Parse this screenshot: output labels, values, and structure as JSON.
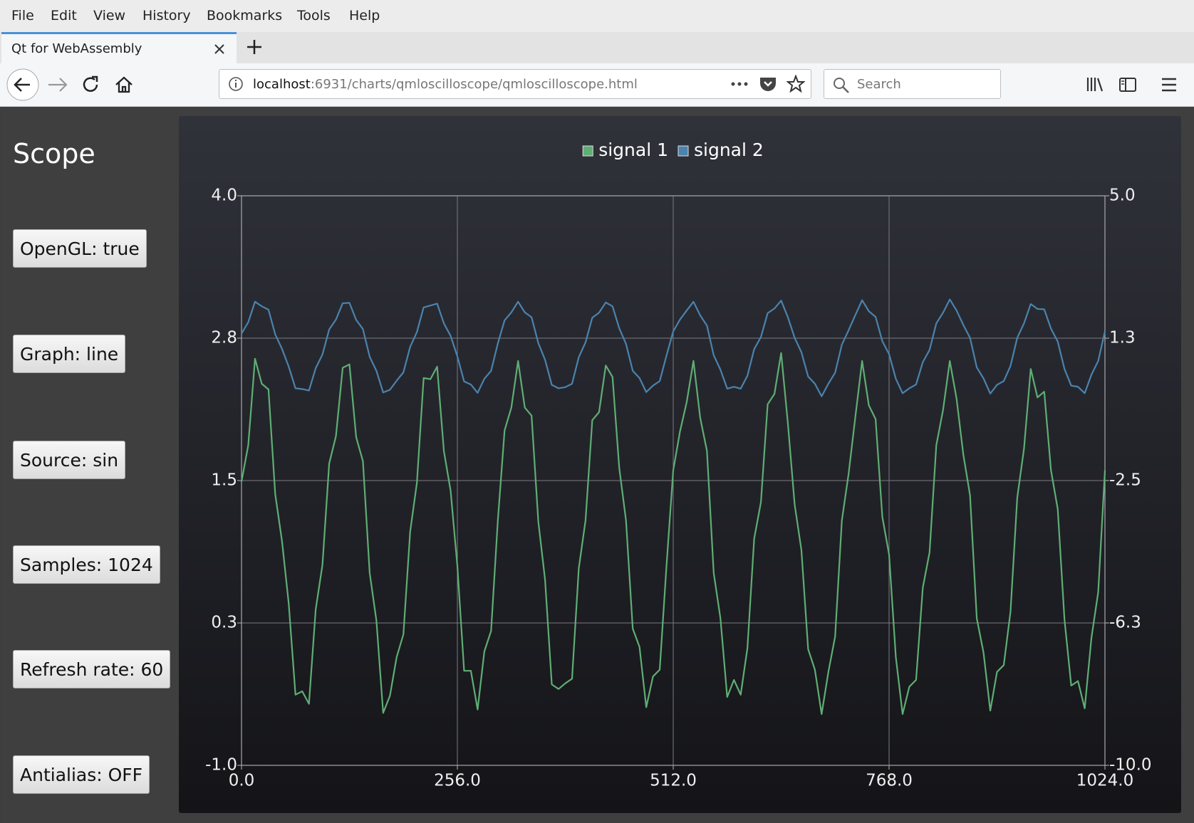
{
  "browser": {
    "menu": [
      "File",
      "Edit",
      "View",
      "History",
      "Bookmarks",
      "Tools",
      "Help"
    ],
    "tab_title": "Qt for WebAssembly",
    "url_host": "localhost",
    "url_path": ":6931/charts/qmloscilloscope/qmloscilloscope.html",
    "search_placeholder": "Search"
  },
  "app": {
    "title": "Scope",
    "buttons": [
      "OpenGL: true",
      "Graph: line",
      "Source: sin",
      "Samples: 1024",
      "Refresh rate: 60",
      "Antialias: OFF"
    ]
  },
  "chart_data": {
    "type": "line",
    "grid": true,
    "legend": "top",
    "x": [
      0,
      8,
      16,
      24,
      32,
      40,
      48,
      56,
      64,
      72,
      80,
      88,
      96,
      104,
      112,
      120,
      128,
      136,
      144,
      152,
      160,
      168,
      176,
      184,
      192,
      200,
      208,
      216,
      224,
      232,
      240,
      248,
      256,
      264,
      272,
      280,
      288,
      296,
      304,
      312,
      320,
      328,
      336,
      344,
      352,
      360,
      368,
      376,
      384,
      392,
      400,
      408,
      416,
      424,
      432,
      440,
      448,
      456,
      464,
      472,
      480,
      488,
      496,
      504,
      512,
      520,
      528,
      536,
      544,
      552,
      560,
      568,
      576,
      584,
      592,
      600,
      608,
      616,
      624,
      632,
      640,
      648,
      656,
      664,
      672,
      680,
      688,
      696,
      704,
      712,
      720,
      728,
      736,
      744,
      752,
      760,
      768,
      776,
      784,
      792,
      800,
      808,
      816,
      824,
      832,
      840,
      848,
      856,
      864,
      872,
      880,
      888,
      896,
      904,
      912,
      920,
      928,
      936,
      944,
      952,
      960,
      968,
      976,
      984,
      992,
      1000,
      1008,
      1016,
      1024
    ],
    "xlim": [
      0,
      1024
    ],
    "xticks": [
      {
        "value": 0,
        "label": "0.0"
      },
      {
        "value": 256,
        "label": "256.0"
      },
      {
        "value": 512,
        "label": "512.0"
      },
      {
        "value": 768,
        "label": "768.0"
      },
      {
        "value": 1024,
        "label": "1024.0"
      }
    ],
    "ylim": [
      -1,
      4
    ],
    "yticks": [
      {
        "value": -1,
        "label": "-1.0"
      },
      {
        "value": 0.25,
        "label": "0.3"
      },
      {
        "value": 1.5,
        "label": "1.5"
      },
      {
        "value": 2.75,
        "label": "2.8"
      },
      {
        "value": 4,
        "label": "4.0"
      }
    ],
    "y2lim": [
      -10,
      5
    ],
    "y2ticks": [
      {
        "value": -10,
        "label": "-10.0"
      },
      {
        "value": -6.25,
        "label": "-6.3"
      },
      {
        "value": -2.5,
        "label": "-2.5"
      },
      {
        "value": 1.25,
        "label": "1.3"
      },
      {
        "value": 5,
        "label": "5.0"
      }
    ],
    "series": [
      {
        "name": "signal 1",
        "color": "#5fae74",
        "values": [
          1.49,
          1.81,
          2.57,
          2.35,
          2.3,
          1.38,
          0.97,
          0.42,
          -0.38,
          -0.35,
          -0.46,
          0.37,
          0.76,
          1.65,
          1.89,
          2.49,
          2.52,
          1.88,
          1.67,
          0.69,
          0.27,
          -0.54,
          -0.39,
          -0.05,
          0.15,
          1.05,
          1.48,
          2.4,
          2.39,
          2.5,
          1.76,
          1.41,
          0.75,
          -0.17,
          -0.17,
          -0.51,
          0.0,
          0.18,
          1.15,
          1.94,
          2.14,
          2.55,
          2.14,
          2.07,
          1.14,
          0.63,
          -0.29,
          -0.33,
          -0.28,
          -0.24,
          0.73,
          1.15,
          2.03,
          2.1,
          2.51,
          2.41,
          1.61,
          1.15,
          0.2,
          0.04,
          -0.49,
          -0.22,
          -0.16,
          0.75,
          1.59,
          1.93,
          2.19,
          2.55,
          2.05,
          1.76,
          0.69,
          0.29,
          -0.4,
          -0.25,
          -0.38,
          0.03,
          0.99,
          1.31,
          2.17,
          2.26,
          2.62,
          2.0,
          1.29,
          0.89,
          0.02,
          -0.16,
          -0.55,
          -0.18,
          0.13,
          1.15,
          1.56,
          2.06,
          2.55,
          2.16,
          2.04,
          1.18,
          0.85,
          -0.05,
          -0.55,
          -0.31,
          -0.25,
          0.56,
          0.87,
          1.81,
          2.12,
          2.55,
          2.22,
          1.73,
          1.37,
          0.29,
          -0.01,
          -0.52,
          -0.18,
          -0.12,
          0.35,
          1.35,
          1.78,
          2.48,
          2.23,
          2.28,
          1.59,
          1.25,
          0.28,
          -0.3,
          -0.26,
          -0.5,
          0.12,
          0.52,
          1.59
        ]
      },
      {
        "name": "signal 2",
        "color": "#4b83ad",
        "axis": "y2",
        "values": [
          1.37,
          1.67,
          2.21,
          2.09,
          2.0,
          1.35,
          0.97,
          0.5,
          -0.07,
          -0.09,
          -0.13,
          0.46,
          0.82,
          1.48,
          1.74,
          2.17,
          2.18,
          1.73,
          1.49,
          0.76,
          0.39,
          -0.18,
          -0.11,
          0.13,
          0.35,
          1.02,
          1.41,
          2.06,
          2.11,
          2.16,
          1.64,
          1.31,
          0.77,
          0.11,
          0.03,
          -0.19,
          0.18,
          0.39,
          1.11,
          1.72,
          1.93,
          2.21,
          1.93,
          1.8,
          1.12,
          0.68,
          0.02,
          -0.07,
          -0.04,
          0.05,
          0.75,
          1.14,
          1.79,
          1.92,
          2.19,
          2.09,
          1.51,
          1.1,
          0.39,
          0.2,
          -0.17,
          0.0,
          0.12,
          0.79,
          1.43,
          1.74,
          1.98,
          2.21,
          1.85,
          1.58,
          0.8,
          0.42,
          -0.08,
          -0.03,
          -0.08,
          0.26,
          0.96,
          1.28,
          1.91,
          2.03,
          2.24,
          1.8,
          1.26,
          0.88,
          0.24,
          0.05,
          -0.28,
          0.05,
          0.34,
          1.08,
          1.46,
          1.86,
          2.25,
          1.96,
          1.81,
          1.17,
          0.83,
          0.18,
          -0.2,
          -0.07,
          0.03,
          0.62,
          0.94,
          1.64,
          1.92,
          2.27,
          1.98,
          1.6,
          1.26,
          0.48,
          0.19,
          -0.21,
          0.02,
          0.12,
          0.52,
          1.26,
          1.64,
          2.15,
          2.02,
          2.01,
          1.5,
          1.16,
          0.44,
          0.0,
          -0.03,
          -0.2,
          0.29,
          0.65,
          1.43
        ]
      }
    ]
  }
}
